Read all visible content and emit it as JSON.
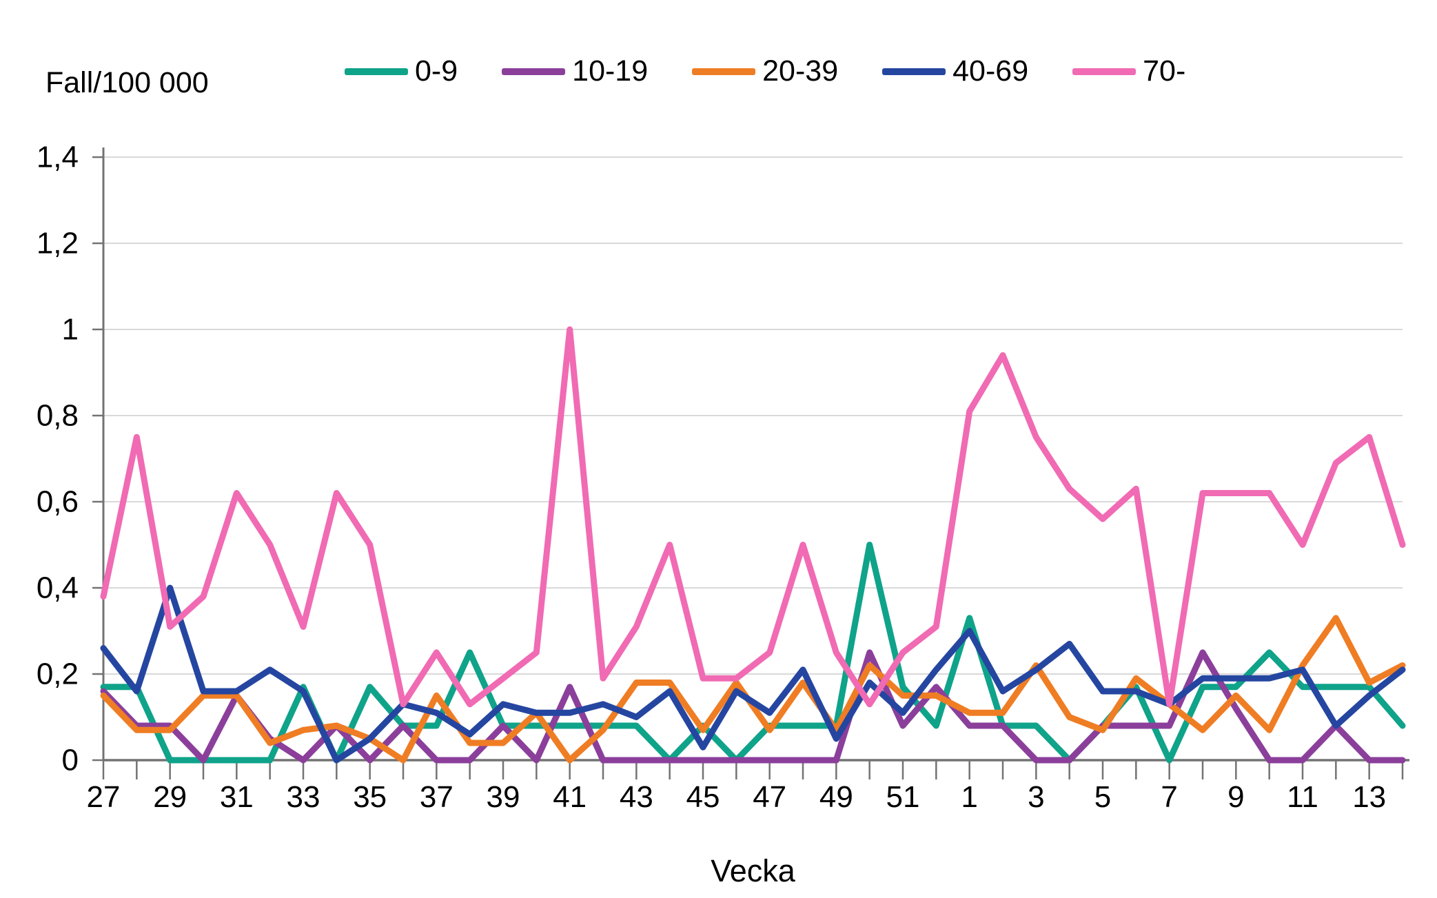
{
  "title": "Fall/100 000",
  "x_axis_title": "Vecka",
  "colors": {
    "background": "#ffffff",
    "gridline": "#d9d9d9",
    "axis": "#737373",
    "text": "#000000"
  },
  "chart_data": {
    "type": "line",
    "title": "Fall/100 000",
    "xlabel": "Vecka",
    "ylabel": "Fall/100 000",
    "ylim": [
      0,
      1.4
    ],
    "grid": "horizontal",
    "legend_position": "top",
    "y_ticks": [
      {
        "v": 0.0,
        "label": "0"
      },
      {
        "v": 0.2,
        "label": "0,2"
      },
      {
        "v": 0.4,
        "label": "0,4"
      },
      {
        "v": 0.6,
        "label": "0,6"
      },
      {
        "v": 0.8,
        "label": "0,8"
      },
      {
        "v": 1.0,
        "label": "1"
      },
      {
        "v": 1.2,
        "label": "1,2"
      },
      {
        "v": 1.4,
        "label": "1,4"
      }
    ],
    "categories": [
      "27",
      "28",
      "29",
      "30",
      "31",
      "32",
      "33",
      "34",
      "35",
      "36",
      "37",
      "38",
      "39",
      "40",
      "41",
      "42",
      "43",
      "44",
      "45",
      "46",
      "47",
      "48",
      "49",
      "50",
      "51",
      "52",
      "1",
      "2",
      "3",
      "4",
      "5",
      "6",
      "7",
      "8",
      "9",
      "10",
      "11",
      "12",
      "13",
      "14"
    ],
    "x_tick_labels": [
      "27",
      "29",
      "31",
      "33",
      "35",
      "37",
      "39",
      "41",
      "43",
      "45",
      "47",
      "49",
      "51",
      "1",
      "3",
      "5",
      "7",
      "9",
      "11",
      "13"
    ],
    "series": [
      {
        "name": "0-9",
        "color": "#0fa38a",
        "values": [
          0.17,
          0.17,
          0,
          0,
          0,
          0,
          0.17,
          0,
          0.17,
          0.08,
          0.08,
          0.25,
          0.08,
          0.08,
          0.08,
          0.08,
          0.08,
          0,
          0.08,
          0,
          0.08,
          0.08,
          0.08,
          0.5,
          0.17,
          0.08,
          0.33,
          0.08,
          0.08,
          0,
          0.08,
          0.17,
          0,
          0.17,
          0.17,
          0.25,
          0.17,
          0.17,
          0.17,
          0.08
        ]
      },
      {
        "name": "10-19",
        "color": "#8b3f9b",
        "values": [
          0.16,
          0.08,
          0.08,
          0,
          0.15,
          0.05,
          0,
          0.08,
          0,
          0.08,
          0,
          0,
          0.08,
          0,
          0.17,
          0,
          0,
          0,
          0,
          0,
          0,
          0,
          0,
          0.25,
          0.08,
          0.17,
          0.08,
          0.08,
          0,
          0,
          0.08,
          0.08,
          0.08,
          0.25,
          0.12,
          0,
          0,
          0.08,
          0,
          0
        ]
      },
      {
        "name": "20-39",
        "color": "#ef7d24",
        "values": [
          0.15,
          0.07,
          0.07,
          0.15,
          0.15,
          0.04,
          0.07,
          0.08,
          0.05,
          0,
          0.15,
          0.04,
          0.04,
          0.11,
          0,
          0.07,
          0.18,
          0.18,
          0.07,
          0.18,
          0.07,
          0.18,
          0.07,
          0.22,
          0.15,
          0.15,
          0.11,
          0.11,
          0.22,
          0.1,
          0.07,
          0.19,
          0.13,
          0.07,
          0.15,
          0.07,
          0.22,
          0.33,
          0.18,
          0.22
        ]
      },
      {
        "name": "40-69",
        "color": "#2546a0",
        "values": [
          0.26,
          0.16,
          0.4,
          0.16,
          0.16,
          0.21,
          0.16,
          0,
          0.05,
          0.13,
          0.11,
          0.06,
          0.13,
          0.11,
          0.11,
          0.13,
          0.1,
          0.16,
          0.03,
          0.16,
          0.11,
          0.21,
          0.05,
          0.18,
          0.11,
          0.21,
          0.3,
          0.16,
          0.21,
          0.27,
          0.16,
          0.16,
          0.13,
          0.19,
          0.19,
          0.19,
          0.21,
          0.08,
          0.15,
          0.21
        ]
      },
      {
        "name": "70-",
        "color": "#f06bb3",
        "values": [
          0.38,
          0.75,
          0.31,
          0.38,
          0.62,
          0.5,
          0.31,
          0.62,
          0.5,
          0.13,
          0.25,
          0.13,
          0.19,
          0.25,
          1.0,
          0.19,
          0.31,
          0.5,
          0.19,
          0.19,
          0.25,
          0.5,
          0.25,
          0.13,
          0.25,
          0.31,
          0.81,
          0.94,
          0.75,
          0.63,
          0.56,
          0.63,
          0.13,
          0.62,
          0.62,
          0.62,
          0.5,
          0.69,
          0.75,
          0.5
        ]
      }
    ]
  }
}
